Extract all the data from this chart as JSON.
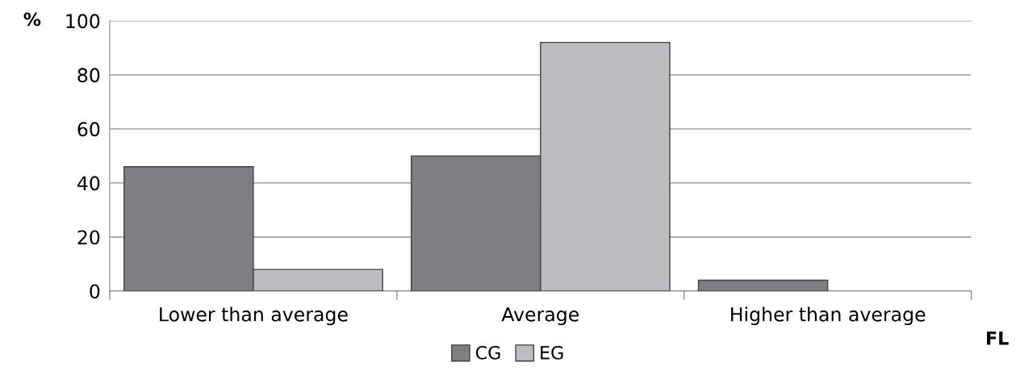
{
  "chart_data": {
    "type": "bar",
    "ylabel": "%",
    "xlabel": "FL",
    "categories": [
      "Lower than average",
      "Average",
      "Higher than average"
    ],
    "series": [
      {
        "name": "CG",
        "color": "#7e7f82",
        "values": [
          46,
          50,
          4
        ]
      },
      {
        "name": "EG",
        "color": "#bcbdc0",
        "values": [
          8,
          92,
          0
        ]
      }
    ],
    "ylim": [
      0,
      100
    ],
    "yticks": [
      0,
      20,
      40,
      60,
      80,
      100
    ],
    "grid": "y",
    "legend": "bottom"
  }
}
